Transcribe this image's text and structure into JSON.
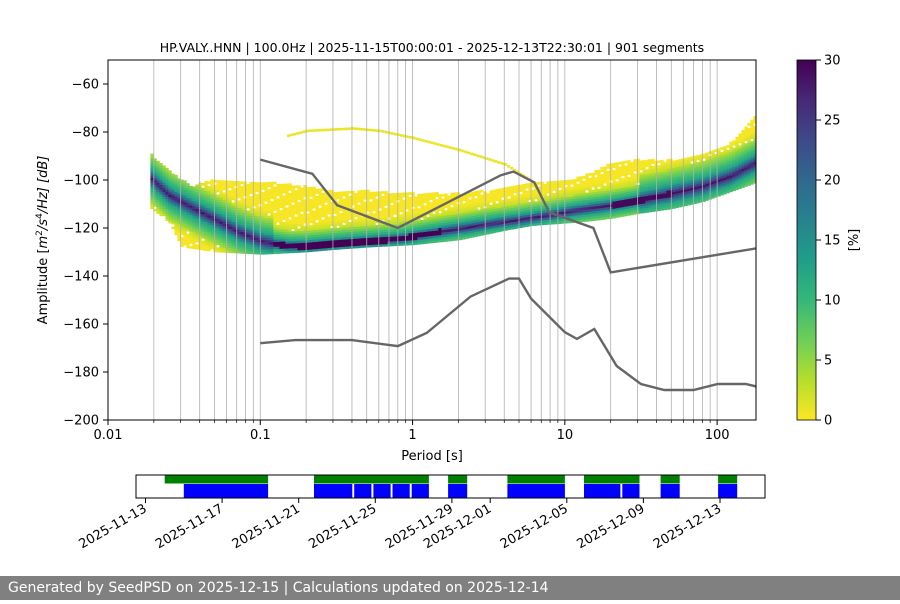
{
  "chart_data": {
    "type": "heatmap",
    "title": "HP.VALY..HNN | 100.0Hz | 2025-11-15T00:00:01 - 2025-12-13T22:30:01 | 901 segments",
    "xlabel": "Period [s]",
    "ylabel_parts": {
      "pre": "Amplitude [",
      "m": "m",
      "e2": "2",
      "s": "/s",
      "e4": "4",
      "post": "/Hz] [dB]"
    },
    "x_scale": "log",
    "xlim": [
      0.01,
      180
    ],
    "ylim": [
      -200,
      -50
    ],
    "x_ticks": [
      {
        "v": 0.01,
        "label": "0.01"
      },
      {
        "v": 0.1,
        "label": "0.1"
      },
      {
        "v": 1,
        "label": "1"
      },
      {
        "v": 10,
        "label": "10"
      },
      {
        "v": 100,
        "label": "100"
      }
    ],
    "y_ticks": [
      {
        "v": -60,
        "label": "−60"
      },
      {
        "v": -80,
        "label": "−80"
      },
      {
        "v": -100,
        "label": "−100"
      },
      {
        "v": -120,
        "label": "−120"
      },
      {
        "v": -140,
        "label": "−140"
      },
      {
        "v": -160,
        "label": "−160"
      },
      {
        "v": -180,
        "label": "−180"
      },
      {
        "v": -200,
        "label": "−200"
      }
    ],
    "grid": "vertical",
    "colorbar": {
      "label": "[%]",
      "range": [
        0,
        30
      ],
      "ticks": [
        {
          "v": 0,
          "label": "0"
        },
        {
          "v": 5,
          "label": "5"
        },
        {
          "v": 10,
          "label": "10"
        },
        {
          "v": 15,
          "label": "15"
        },
        {
          "v": 20,
          "label": "20"
        },
        {
          "v": 25,
          "label": "25"
        },
        {
          "v": 30,
          "label": "30"
        }
      ],
      "colormap": "viridis_r",
      "stops": [
        "#fde725",
        "#b5de2b",
        "#6ece58",
        "#35b779",
        "#1f9e89",
        "#26828e",
        "#31688e",
        "#3e4989",
        "#482878",
        "#440154"
      ]
    },
    "psd_mode": {
      "name": "mode",
      "points": [
        [
          0.019,
          -100
        ],
        [
          0.025,
          -107
        ],
        [
          0.035,
          -112
        ],
        [
          0.05,
          -117
        ],
        [
          0.07,
          -122
        ],
        [
          0.1,
          -126
        ],
        [
          0.15,
          -128
        ],
        [
          0.2,
          -128
        ],
        [
          0.3,
          -127
        ],
        [
          0.5,
          -126
        ],
        [
          0.8,
          -125
        ],
        [
          1.5,
          -122
        ],
        [
          3,
          -119
        ],
        [
          5,
          -117
        ],
        [
          8,
          -115
        ],
        [
          12,
          -113
        ],
        [
          20,
          -111
        ],
        [
          30,
          -109
        ],
        [
          50,
          -106
        ],
        [
          80,
          -103
        ],
        [
          120,
          -99
        ],
        [
          180,
          -93
        ]
      ]
    },
    "psd_envelope": {
      "upper": [
        [
          0.019,
          -90
        ],
        [
          0.025,
          -97
        ],
        [
          0.035,
          -103
        ],
        [
          0.05,
          -100
        ],
        [
          0.1,
          -101
        ],
        [
          0.2,
          -103
        ],
        [
          0.3,
          -105
        ],
        [
          0.5,
          -105
        ],
        [
          1,
          -106
        ],
        [
          2,
          -106
        ],
        [
          4,
          -104
        ],
        [
          6,
          -102
        ],
        [
          10,
          -101
        ],
        [
          15,
          -97
        ],
        [
          20,
          -93
        ],
        [
          30,
          -92
        ],
        [
          50,
          -92
        ],
        [
          80,
          -90
        ],
        [
          120,
          -85
        ],
        [
          180,
          -73
        ]
      ],
      "lower": [
        [
          0.019,
          -112
        ],
        [
          0.025,
          -118
        ],
        [
          0.03,
          -128
        ],
        [
          0.05,
          -130
        ],
        [
          0.1,
          -131
        ],
        [
          0.2,
          -130
        ],
        [
          0.3,
          -129
        ],
        [
          0.5,
          -128
        ],
        [
          1,
          -127
        ],
        [
          2,
          -125
        ],
        [
          4,
          -121
        ],
        [
          6,
          -119
        ],
        [
          10,
          -118
        ],
        [
          15,
          -117
        ],
        [
          20,
          -116
        ],
        [
          30,
          -114
        ],
        [
          50,
          -112
        ],
        [
          80,
          -109
        ],
        [
          120,
          -105
        ],
        [
          180,
          -101
        ]
      ],
      "isolated_band": [
        [
          0.15,
          -82
        ],
        [
          0.2,
          -80
        ],
        [
          0.4,
          -79
        ],
        [
          0.6,
          -80
        ],
        [
          1,
          -83
        ],
        [
          2,
          -88
        ],
        [
          4,
          -94
        ],
        [
          6,
          -101
        ]
      ]
    },
    "series": [
      {
        "name": "high-noise-model",
        "color": "#666666",
        "points": [
          [
            0.1,
            -91.5
          ],
          [
            0.22,
            -97.4
          ],
          [
            0.32,
            -110.5
          ],
          [
            0.8,
            -120.0
          ],
          [
            3.8,
            -98.0
          ],
          [
            4.6,
            -96.5
          ],
          [
            6.3,
            -101.0
          ],
          [
            7.9,
            -113.5
          ],
          [
            15.4,
            -120.0
          ],
          [
            20,
            -138.5
          ],
          [
            180,
            -128.5
          ]
        ]
      },
      {
        "name": "low-noise-model",
        "color": "#666666",
        "points": [
          [
            0.1,
            -168.0
          ],
          [
            0.17,
            -166.7
          ],
          [
            0.4,
            -166.7
          ],
          [
            0.8,
            -169.2
          ],
          [
            1.24,
            -163.7
          ],
          [
            2.4,
            -148.6
          ],
          [
            4.3,
            -141.1
          ],
          [
            5.0,
            -141.1
          ],
          [
            6.0,
            -149.4
          ],
          [
            10.0,
            -163.4
          ],
          [
            12.0,
            -166.2
          ],
          [
            15.6,
            -162.1
          ],
          [
            21.9,
            -177.5
          ],
          [
            31.6,
            -185.0
          ],
          [
            45,
            -187.5
          ],
          [
            70,
            -187.5
          ],
          [
            101,
            -185.0
          ],
          [
            154,
            -185.0
          ],
          [
            180,
            -186
          ]
        ]
      }
    ]
  },
  "timeline": {
    "date_labels": [
      "2025-11-13",
      "2025-11-17",
      "2025-11-21",
      "2025-11-25",
      "2025-11-29",
      "2025-12-01",
      "2025-12-05",
      "2025-12-09",
      "2025-12-13"
    ],
    "green_bar": "#008000",
    "blue_bar": "#0000ff"
  },
  "footer": {
    "text": "Generated by SeedPSD on 2025-12-15 | Calculations updated on 2025-12-14"
  }
}
